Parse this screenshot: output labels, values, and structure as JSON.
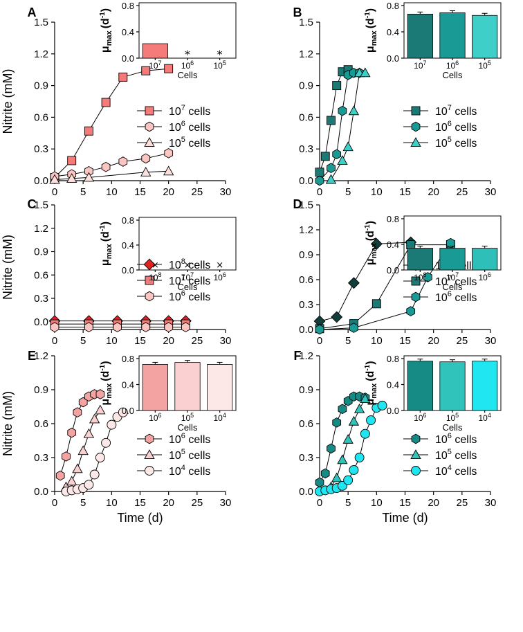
{
  "chart_data": [
    {
      "panel": "A",
      "type": "line",
      "xlabel": "",
      "ylabel": "Nitrite (mM)",
      "xlim": [
        0,
        30
      ],
      "ylim": [
        0,
        1.5
      ],
      "xticks": [
        "0",
        "5",
        "10",
        "15",
        "20",
        "25",
        "30"
      ],
      "yticks": [
        "0.0",
        "0.3",
        "0.6",
        "0.9",
        "1.2",
        "1.5"
      ],
      "series": [
        {
          "name": "10^7 cells",
          "exponent": "7",
          "marker": "square",
          "color": "#F57A7A",
          "x": [
            0,
            3,
            6,
            9,
            12,
            16,
            20
          ],
          "y": [
            0.03,
            0.19,
            0.47,
            0.74,
            0.98,
            1.04,
            1.06
          ]
        },
        {
          "name": "10^6 cells",
          "exponent": "6",
          "marker": "hexagon",
          "color": "#FBC5C1",
          "x": [
            0,
            3,
            6,
            9,
            12,
            16,
            20
          ],
          "y": [
            0.04,
            0.06,
            0.09,
            0.13,
            0.18,
            0.21,
            0.26
          ]
        },
        {
          "name": "10^5 cells",
          "exponent": "5",
          "marker": "triangle",
          "color": "#FDE0DD",
          "x": [
            0,
            3,
            6,
            16,
            20
          ],
          "y": [
            0.01,
            0.02,
            0.03,
            0.08,
            0.09
          ]
        }
      ],
      "inset": {
        "type": "bar",
        "ylabel_main": "μ",
        "ylabel_sub": "max",
        "ylabel_unit": "(d",
        "ylabel_exp": "-1",
        "ylabel_close": ")",
        "xlabel": "Cells",
        "ylim": [
          0,
          0.8
        ],
        "yticks": [
          "0.0",
          "0.4",
          "0.8"
        ],
        "categories": [
          "7",
          "6",
          "5"
        ],
        "values": [
          0.22,
          null,
          null
        ],
        "colors": [
          "#F57A7A",
          "#FBC5C1",
          "#FDE0DD"
        ],
        "missing_marker": "*",
        "error_bars": false
      }
    },
    {
      "panel": "B",
      "type": "line",
      "xlabel": "",
      "ylabel": "",
      "xlim": [
        0,
        30
      ],
      "ylim": [
        0,
        1.5
      ],
      "xticks": [
        "0",
        "5",
        "10",
        "15",
        "20",
        "25",
        "30"
      ],
      "yticks": [
        "0.0",
        "0.3",
        "0.6",
        "0.9",
        "1.2",
        "1.5"
      ],
      "series": [
        {
          "name": "10^7 cells",
          "exponent": "7",
          "marker": "square",
          "color": "#1B7A76",
          "x": [
            0,
            1,
            2,
            3,
            4,
            5
          ],
          "y": [
            0.08,
            0.23,
            0.57,
            0.9,
            1.03,
            1.05
          ]
        },
        {
          "name": "10^6 cells",
          "exponent": "6",
          "marker": "hexagon",
          "color": "#199A94",
          "x": [
            0,
            2,
            3,
            4,
            5,
            6,
            7
          ],
          "y": [
            0.0,
            0.12,
            0.25,
            0.66,
            1.0,
            1.02,
            1.02
          ]
        },
        {
          "name": "10^5 cells",
          "exponent": "5",
          "marker": "triangle",
          "color": "#3ED0C8",
          "x": [
            2,
            4,
            5,
            6,
            7,
            8
          ],
          "y": [
            0.01,
            0.19,
            0.32,
            0.66,
            1.02,
            1.02
          ]
        }
      ],
      "inset": {
        "type": "bar",
        "ylabel_main": "μ",
        "ylabel_sub": "max",
        "ylabel_unit": "(d",
        "ylabel_exp": "-1",
        "ylabel_close": ")",
        "xlabel": "Cells",
        "ylim": [
          0,
          0.8
        ],
        "yticks": [
          "0.0",
          "0.4",
          "0.8"
        ],
        "categories": [
          "7",
          "6",
          "5"
        ],
        "values": [
          0.67,
          0.69,
          0.65
        ],
        "colors": [
          "#1B7A76",
          "#199A94",
          "#3ED0C8"
        ],
        "missing_marker": "",
        "error_bars": true
      }
    },
    {
      "panel": "C",
      "type": "line",
      "xlabel": "",
      "ylabel": "Nitrite (mM)",
      "xlim": [
        0,
        30
      ],
      "ylim": [
        -0.1,
        1.5
      ],
      "xticks": [
        "0",
        "5",
        "10",
        "15",
        "20",
        "25",
        "30"
      ],
      "yticks": [
        "0.0",
        "0.3",
        "0.6",
        "0.9",
        "1.2",
        "1.5"
      ],
      "series": [
        {
          "name": "10^8 cells",
          "exponent": "8",
          "marker": "diamond",
          "color": "#E0211F",
          "x": [
            0,
            6,
            11,
            16,
            20,
            23
          ],
          "y": [
            0.01,
            0.01,
            0.01,
            0.01,
            0.01,
            0.01
          ]
        },
        {
          "name": "10^7 cells",
          "exponent": "7",
          "marker": "square",
          "color": "#F57A7A",
          "x": [
            0,
            6,
            11,
            16,
            20,
            23
          ],
          "y": [
            -0.03,
            -0.03,
            -0.03,
            -0.03,
            -0.03,
            -0.03
          ]
        },
        {
          "name": "10^6 cells",
          "exponent": "6",
          "marker": "hexagon",
          "color": "#FBC5C1",
          "x": [
            0,
            6,
            11,
            16,
            20,
            23
          ],
          "y": [
            -0.07,
            -0.07,
            -0.07,
            -0.07,
            -0.07,
            -0.07
          ]
        }
      ],
      "inset": {
        "type": "bar",
        "ylabel_main": "μ",
        "ylabel_sub": "max",
        "ylabel_unit": "(d",
        "ylabel_exp": "-1",
        "ylabel_close": ")",
        "xlabel": "Cells",
        "ylim": [
          0,
          0.8
        ],
        "yticks": [
          "0.0",
          "0.4",
          "0.8"
        ],
        "categories": [
          "8",
          "7",
          "6"
        ],
        "values": [
          null,
          null,
          null
        ],
        "colors": [
          "#E0211F",
          "#F57A7A",
          "#FBC5C1"
        ],
        "missing_marker": "×",
        "error_bars": false
      }
    },
    {
      "panel": "D",
      "type": "line",
      "xlabel": "",
      "ylabel": "",
      "xlim": [
        0,
        30
      ],
      "ylim": [
        0,
        1.5
      ],
      "xticks": [
        "0",
        "5",
        "10",
        "15",
        "20",
        "25",
        "30"
      ],
      "yticks": [
        "0.0",
        "0.3",
        "0.6",
        "0.9",
        "1.2",
        "1.5"
      ],
      "series": [
        {
          "name": "10^8 cells",
          "exponent": "8",
          "marker": "diamond",
          "color": "#123F3C",
          "x": [
            0,
            3,
            6,
            10,
            16
          ],
          "y": [
            0.1,
            0.15,
            0.56,
            1.03,
            1.05
          ]
        },
        {
          "name": "10^7 cells",
          "exponent": "7",
          "marker": "square",
          "color": "#1B7A76",
          "x": [
            0,
            6,
            10,
            16,
            23
          ],
          "y": [
            0.01,
            0.07,
            0.31,
            1.02,
            1.02
          ]
        },
        {
          "name": "10^6 cells",
          "exponent": "6",
          "marker": "hexagon",
          "color": "#199A94",
          "x": [
            0,
            6,
            16,
            19,
            23
          ],
          "y": [
            0.0,
            0.02,
            0.22,
            0.63,
            1.04
          ]
        }
      ],
      "inset": {
        "type": "bar",
        "ylabel_main": "μ",
        "ylabel_sub": "max",
        "ylabel_unit": "(d",
        "ylabel_exp": "-1",
        "ylabel_close": ")",
        "xlabel": "Cells",
        "ylim": [
          0,
          0.8
        ],
        "yticks": [
          "0.0",
          "0.4",
          "0.8"
        ],
        "categories": [
          "8",
          "7",
          "6"
        ],
        "values": [
          0.34,
          0.34,
          0.34
        ],
        "colors": [
          "#1B7A76",
          "#199A94",
          "#2EBFB8"
        ],
        "missing_marker": "",
        "error_bars": true
      }
    },
    {
      "panel": "E",
      "type": "line",
      "xlabel": "Time (d)",
      "ylabel": "Nitrite (mM)",
      "xlim": [
        0,
        30
      ],
      "ylim": [
        0,
        1.2
      ],
      "xticks": [
        "0",
        "5",
        "10",
        "15",
        "20",
        "25",
        "30"
      ],
      "yticks": [
        "0.0",
        "0.3",
        "0.6",
        "0.9",
        "1.2"
      ],
      "series": [
        {
          "name": "10^6 cells",
          "exponent": "6",
          "marker": "hexagon",
          "color": "#F4A3A3",
          "x": [
            1,
            2,
            3,
            4,
            5,
            6,
            7,
            8
          ],
          "y": [
            0.14,
            0.31,
            0.52,
            0.7,
            0.79,
            0.84,
            0.86,
            0.86
          ]
        },
        {
          "name": "10^5 cells",
          "exponent": "5",
          "marker": "triangle",
          "color": "#FBD0D0",
          "x": [
            2,
            3,
            4,
            5,
            6,
            7,
            8
          ],
          "y": [
            0.04,
            0.09,
            0.2,
            0.36,
            0.51,
            0.64,
            0.72
          ]
        },
        {
          "name": "10^4 cells",
          "exponent": "4",
          "marker": "circle",
          "color": "#FDE8E8",
          "x": [
            2,
            3,
            4,
            5,
            6,
            7,
            8,
            9,
            10,
            11,
            12
          ],
          "y": [
            0.0,
            0.01,
            0.02,
            0.03,
            0.06,
            0.15,
            0.3,
            0.43,
            0.59,
            0.66,
            0.7
          ]
        }
      ],
      "inset": {
        "type": "bar",
        "ylabel_main": "μ",
        "ylabel_sub": "max",
        "ylabel_unit": "(d",
        "ylabel_exp": "-1",
        "ylabel_close": ")",
        "xlabel": "Cells",
        "ylim": [
          0,
          0.8
        ],
        "yticks": [
          "0.0",
          "0.4",
          "0.8"
        ],
        "categories": [
          "6",
          "5",
          "4"
        ],
        "values": [
          0.71,
          0.74,
          0.71
        ],
        "colors": [
          "#F4A3A3",
          "#FBD0D0",
          "#FDE8E8"
        ],
        "missing_marker": "",
        "error_bars": true
      }
    },
    {
      "panel": "F",
      "type": "line",
      "xlabel": "Time (d)",
      "ylabel": "",
      "xlim": [
        0,
        30
      ],
      "ylim": [
        0,
        1.2
      ],
      "xticks": [
        "0",
        "5",
        "10",
        "15",
        "20",
        "25",
        "30"
      ],
      "yticks": [
        "0.0",
        "0.3",
        "0.6",
        "0.9",
        "1.2"
      ],
      "series": [
        {
          "name": "10^6 cells",
          "exponent": "6",
          "marker": "hexagon",
          "color": "#168A84",
          "x": [
            0,
            1,
            2,
            3,
            4,
            5,
            6,
            7,
            8
          ],
          "y": [
            0.08,
            0.16,
            0.38,
            0.61,
            0.73,
            0.8,
            0.84,
            0.84,
            0.83
          ]
        },
        {
          "name": "10^5 cells",
          "exponent": "5",
          "marker": "triangle",
          "color": "#2FC3BC",
          "x": [
            2,
            3,
            4,
            5,
            6,
            7,
            8
          ],
          "y": [
            0.04,
            0.12,
            0.28,
            0.46,
            0.62,
            0.73,
            0.82
          ]
        },
        {
          "name": "10^4 cells",
          "exponent": "4",
          "marker": "circle",
          "color": "#1FE6F0",
          "x": [
            0,
            1,
            2,
            3,
            4,
            5,
            6,
            7,
            8,
            9,
            10,
            11
          ],
          "y": [
            0.0,
            0.01,
            0.02,
            0.03,
            0.05,
            0.1,
            0.19,
            0.3,
            0.51,
            0.63,
            0.74,
            0.76
          ]
        }
      ],
      "inset": {
        "type": "bar",
        "ylabel_main": "μ",
        "ylabel_sub": "max",
        "ylabel_unit": "(d",
        "ylabel_exp": "-1",
        "ylabel_close": ")",
        "xlabel": "Cells",
        "ylim": [
          0,
          0.8
        ],
        "yticks": [
          "0.0",
          "0.4",
          "0.8"
        ],
        "categories": [
          "6",
          "5",
          "4"
        ],
        "values": [
          0.76,
          0.75,
          0.76
        ],
        "colors": [
          "#168A84",
          "#2FC3BC",
          "#1FE6F0"
        ],
        "missing_marker": "",
        "error_bars": true
      }
    }
  ]
}
